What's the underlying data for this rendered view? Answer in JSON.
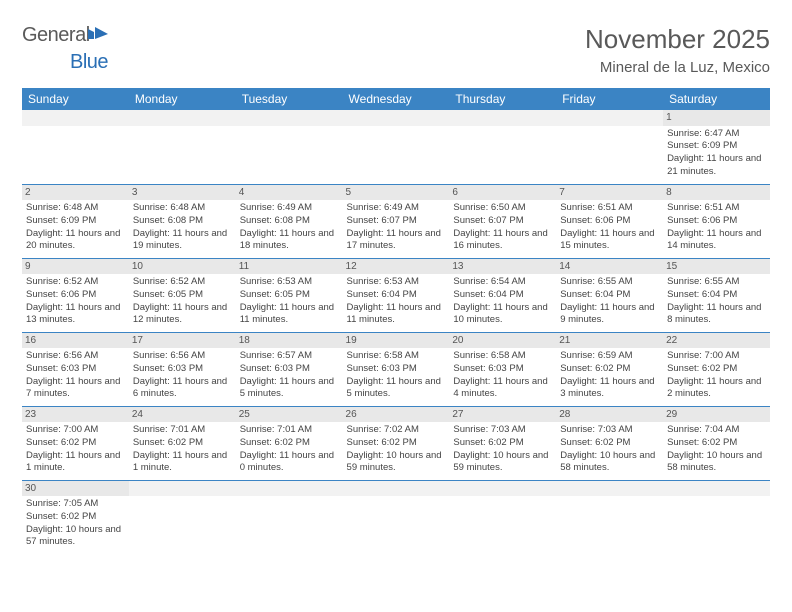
{
  "logo": {
    "text1": "General",
    "text2": "Blue"
  },
  "title": "November 2025",
  "location": "Mineral de la Luz, Mexico",
  "colors": {
    "header_bg": "#3b84c4",
    "header_text": "#ffffff",
    "daynum_bg": "#e8e8e8",
    "border": "#3b84c4",
    "logo_gray": "#5a5a5a",
    "logo_blue": "#2a6fb5",
    "title_color": "#595959"
  },
  "weekdays": [
    "Sunday",
    "Monday",
    "Tuesday",
    "Wednesday",
    "Thursday",
    "Friday",
    "Saturday"
  ],
  "cells": [
    {
      "n": "",
      "sr": "",
      "ss": "",
      "dl": ""
    },
    {
      "n": "",
      "sr": "",
      "ss": "",
      "dl": ""
    },
    {
      "n": "",
      "sr": "",
      "ss": "",
      "dl": ""
    },
    {
      "n": "",
      "sr": "",
      "ss": "",
      "dl": ""
    },
    {
      "n": "",
      "sr": "",
      "ss": "",
      "dl": ""
    },
    {
      "n": "",
      "sr": "",
      "ss": "",
      "dl": ""
    },
    {
      "n": "1",
      "sr": "Sunrise: 6:47 AM",
      "ss": "Sunset: 6:09 PM",
      "dl": "Daylight: 11 hours and 21 minutes."
    },
    {
      "n": "2",
      "sr": "Sunrise: 6:48 AM",
      "ss": "Sunset: 6:09 PM",
      "dl": "Daylight: 11 hours and 20 minutes."
    },
    {
      "n": "3",
      "sr": "Sunrise: 6:48 AM",
      "ss": "Sunset: 6:08 PM",
      "dl": "Daylight: 11 hours and 19 minutes."
    },
    {
      "n": "4",
      "sr": "Sunrise: 6:49 AM",
      "ss": "Sunset: 6:08 PM",
      "dl": "Daylight: 11 hours and 18 minutes."
    },
    {
      "n": "5",
      "sr": "Sunrise: 6:49 AM",
      "ss": "Sunset: 6:07 PM",
      "dl": "Daylight: 11 hours and 17 minutes."
    },
    {
      "n": "6",
      "sr": "Sunrise: 6:50 AM",
      "ss": "Sunset: 6:07 PM",
      "dl": "Daylight: 11 hours and 16 minutes."
    },
    {
      "n": "7",
      "sr": "Sunrise: 6:51 AM",
      "ss": "Sunset: 6:06 PM",
      "dl": "Daylight: 11 hours and 15 minutes."
    },
    {
      "n": "8",
      "sr": "Sunrise: 6:51 AM",
      "ss": "Sunset: 6:06 PM",
      "dl": "Daylight: 11 hours and 14 minutes."
    },
    {
      "n": "9",
      "sr": "Sunrise: 6:52 AM",
      "ss": "Sunset: 6:06 PM",
      "dl": "Daylight: 11 hours and 13 minutes."
    },
    {
      "n": "10",
      "sr": "Sunrise: 6:52 AM",
      "ss": "Sunset: 6:05 PM",
      "dl": "Daylight: 11 hours and 12 minutes."
    },
    {
      "n": "11",
      "sr": "Sunrise: 6:53 AM",
      "ss": "Sunset: 6:05 PM",
      "dl": "Daylight: 11 hours and 11 minutes."
    },
    {
      "n": "12",
      "sr": "Sunrise: 6:53 AM",
      "ss": "Sunset: 6:04 PM",
      "dl": "Daylight: 11 hours and 11 minutes."
    },
    {
      "n": "13",
      "sr": "Sunrise: 6:54 AM",
      "ss": "Sunset: 6:04 PM",
      "dl": "Daylight: 11 hours and 10 minutes."
    },
    {
      "n": "14",
      "sr": "Sunrise: 6:55 AM",
      "ss": "Sunset: 6:04 PM",
      "dl": "Daylight: 11 hours and 9 minutes."
    },
    {
      "n": "15",
      "sr": "Sunrise: 6:55 AM",
      "ss": "Sunset: 6:04 PM",
      "dl": "Daylight: 11 hours and 8 minutes."
    },
    {
      "n": "16",
      "sr": "Sunrise: 6:56 AM",
      "ss": "Sunset: 6:03 PM",
      "dl": "Daylight: 11 hours and 7 minutes."
    },
    {
      "n": "17",
      "sr": "Sunrise: 6:56 AM",
      "ss": "Sunset: 6:03 PM",
      "dl": "Daylight: 11 hours and 6 minutes."
    },
    {
      "n": "18",
      "sr": "Sunrise: 6:57 AM",
      "ss": "Sunset: 6:03 PM",
      "dl": "Daylight: 11 hours and 5 minutes."
    },
    {
      "n": "19",
      "sr": "Sunrise: 6:58 AM",
      "ss": "Sunset: 6:03 PM",
      "dl": "Daylight: 11 hours and 5 minutes."
    },
    {
      "n": "20",
      "sr": "Sunrise: 6:58 AM",
      "ss": "Sunset: 6:03 PM",
      "dl": "Daylight: 11 hours and 4 minutes."
    },
    {
      "n": "21",
      "sr": "Sunrise: 6:59 AM",
      "ss": "Sunset: 6:02 PM",
      "dl": "Daylight: 11 hours and 3 minutes."
    },
    {
      "n": "22",
      "sr": "Sunrise: 7:00 AM",
      "ss": "Sunset: 6:02 PM",
      "dl": "Daylight: 11 hours and 2 minutes."
    },
    {
      "n": "23",
      "sr": "Sunrise: 7:00 AM",
      "ss": "Sunset: 6:02 PM",
      "dl": "Daylight: 11 hours and 1 minute."
    },
    {
      "n": "24",
      "sr": "Sunrise: 7:01 AM",
      "ss": "Sunset: 6:02 PM",
      "dl": "Daylight: 11 hours and 1 minute."
    },
    {
      "n": "25",
      "sr": "Sunrise: 7:01 AM",
      "ss": "Sunset: 6:02 PM",
      "dl": "Daylight: 11 hours and 0 minutes."
    },
    {
      "n": "26",
      "sr": "Sunrise: 7:02 AM",
      "ss": "Sunset: 6:02 PM",
      "dl": "Daylight: 10 hours and 59 minutes."
    },
    {
      "n": "27",
      "sr": "Sunrise: 7:03 AM",
      "ss": "Sunset: 6:02 PM",
      "dl": "Daylight: 10 hours and 59 minutes."
    },
    {
      "n": "28",
      "sr": "Sunrise: 7:03 AM",
      "ss": "Sunset: 6:02 PM",
      "dl": "Daylight: 10 hours and 58 minutes."
    },
    {
      "n": "29",
      "sr": "Sunrise: 7:04 AM",
      "ss": "Sunset: 6:02 PM",
      "dl": "Daylight: 10 hours and 58 minutes."
    },
    {
      "n": "30",
      "sr": "Sunrise: 7:05 AM",
      "ss": "Sunset: 6:02 PM",
      "dl": "Daylight: 10 hours and 57 minutes."
    },
    {
      "n": "",
      "sr": "",
      "ss": "",
      "dl": ""
    },
    {
      "n": "",
      "sr": "",
      "ss": "",
      "dl": ""
    },
    {
      "n": "",
      "sr": "",
      "ss": "",
      "dl": ""
    },
    {
      "n": "",
      "sr": "",
      "ss": "",
      "dl": ""
    },
    {
      "n": "",
      "sr": "",
      "ss": "",
      "dl": ""
    },
    {
      "n": "",
      "sr": "",
      "ss": "",
      "dl": ""
    }
  ]
}
